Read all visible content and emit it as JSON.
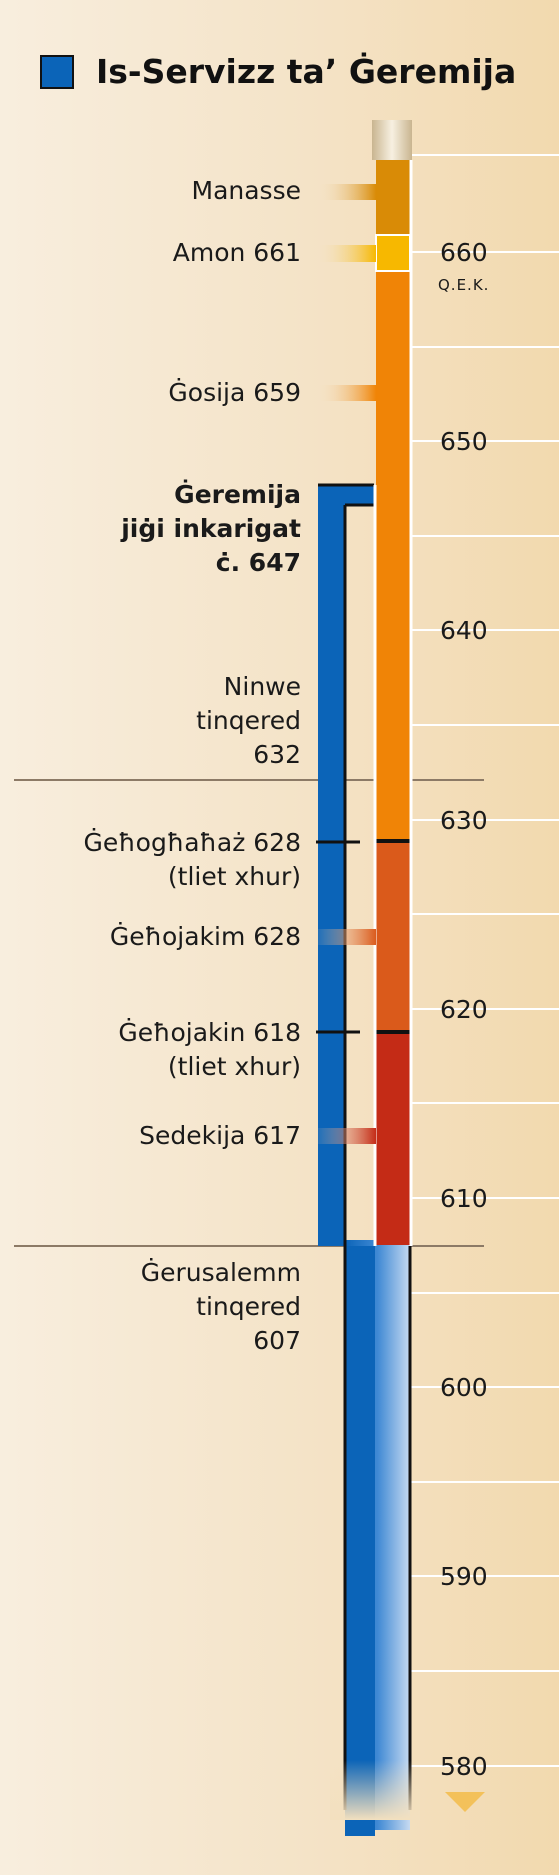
{
  "legend": {
    "label": "Is-Servizz ta’ Ġeremija",
    "color": "#0b64b8"
  },
  "axis": {
    "years": [
      "660",
      "650",
      "640",
      "630",
      "620",
      "610",
      "600",
      "590",
      "580"
    ],
    "era_label": "Q.E.K.",
    "top_year": 666,
    "bottom_year": 580
  },
  "labels": {
    "manasse": "Manasse",
    "amon": "Amon 661",
    "gosija": "Ġosija 659",
    "geremija": "Ġeremija\njiġi inkarigat\nċ. 647",
    "ninwe": "Ninwe\ntinqered\n632",
    "gehoghahaz": "Ġeħogħaħaż 628\n(tliet xhur)",
    "gehojakim": "Ġeħojakim 628",
    "gehojakin": "Ġeħojakin 618\n(tliet xhur)",
    "sedekija": "Sedekija 617",
    "gerusalemm": "Ġerusalemm\ntinqered\n607"
  },
  "reigns": [
    {
      "name": "Manasse",
      "start": 666,
      "end": 661,
      "color": "#d98b06"
    },
    {
      "name": "Amon",
      "start": 661,
      "end": 659,
      "color": "#f7b800"
    },
    {
      "name": "Ġosija",
      "start": 659,
      "end": 628,
      "color": "#f08406"
    },
    {
      "name": "Ġeħojakim",
      "start": 628,
      "end": 618,
      "color": "#da5a1b"
    },
    {
      "name": "Sedekija",
      "start": 618,
      "end": 607,
      "color": "#c42b16"
    }
  ],
  "service": {
    "start": 647,
    "end": 580
  },
  "events": [
    {
      "name": "Ninwe tinqered",
      "year": 632
    },
    {
      "name": "Ġerusalemm tinqered",
      "year": 607
    }
  ]
}
